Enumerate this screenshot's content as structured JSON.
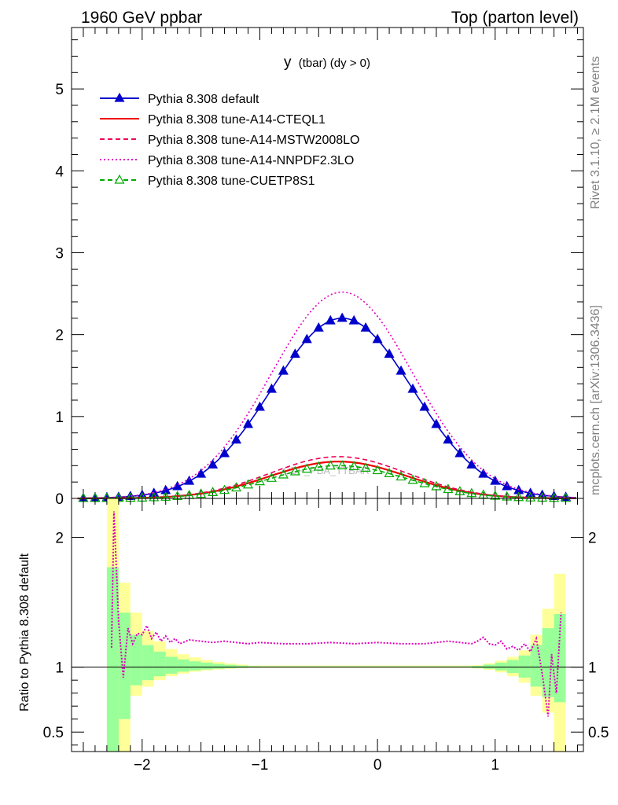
{
  "header": {
    "left": "1960 GeV ppbar",
    "right": "Top (parton level)"
  },
  "side_labels": {
    "rivet": "Rivet 3.1.10, ≥ 2.1M events",
    "mcplots": "mcplots.cern.ch [arXiv:1306.3436]"
  },
  "chart_data": [
    {
      "type": "line",
      "panel": "main",
      "title": "y (tbar) (dy > 0)",
      "title_main": "y",
      "title_sub": "(tbar) (dy > 0)",
      "watermark": "CDF_PBA_TTBAR",
      "xlim": [
        -2.6,
        1.75
      ],
      "ylim": [
        0,
        5.75
      ],
      "yticks": [
        0,
        1,
        2,
        3,
        4,
        5
      ],
      "ytick_labels": [
        "0",
        "1",
        "2",
        "3",
        "4",
        "5"
      ],
      "series": [
        {
          "name": "Pythia 8.308 default",
          "color": "#0000cc",
          "style": "solid",
          "marker": "filled-triangle",
          "mu": -0.3,
          "sigma": 0.6,
          "amp": 2.2
        },
        {
          "name": "Pythia 8.308 tune-A14-CTEQL1",
          "color": "#ee0000",
          "style": "solid",
          "marker": "none",
          "mu": -0.33,
          "sigma": 0.58,
          "amp": 0.45
        },
        {
          "name": "Pythia 8.308 tune-A14-MSTW2008LO",
          "color": "#ee0055",
          "style": "dashed",
          "marker": "none",
          "mu": -0.33,
          "sigma": 0.58,
          "amp": 0.51
        },
        {
          "name": "Pythia 8.308 tune-A14-NNPDF2.3LO",
          "color": "#dd00bb",
          "style": "dotted",
          "marker": "none",
          "mu": -0.3,
          "sigma": 0.6,
          "amp": 2.52
        },
        {
          "name": "Pythia 8.308 tune-CUETP8S1",
          "color": "#00aa00",
          "style": "dashed",
          "marker": "open-triangle",
          "mu": -0.33,
          "sigma": 0.58,
          "amp": 0.4
        }
      ]
    },
    {
      "type": "line",
      "panel": "ratio",
      "ylabel": "Ratio to Pythia 8.308 default",
      "xlim": [
        -2.6,
        1.75
      ],
      "ylim": [
        0.35,
        2.3
      ],
      "yticks": [
        0.5,
        1,
        2
      ],
      "ytick_labels": [
        "0.5",
        "1",
        "2"
      ],
      "xticks": [
        -2,
        -1,
        0,
        1
      ],
      "xtick_labels": [
        "−2",
        "−1",
        "0",
        "1"
      ],
      "reference": 1,
      "band_bins": [
        -2.3,
        -2.2,
        -2.1,
        -2.0,
        -1.9,
        -1.8,
        -1.7,
        -1.6,
        -1.5,
        -1.4,
        -1.3,
        -1.2,
        -1.1,
        -1.0,
        0.8,
        0.9,
        1.0,
        1.1,
        1.2,
        1.3,
        1.4,
        1.5,
        1.6
      ],
      "band_yellow": [
        [
          0.35,
          2.3
        ],
        [
          0.35,
          1.65
        ],
        [
          0.78,
          1.42
        ],
        [
          0.85,
          1.28
        ],
        [
          0.9,
          1.2
        ],
        [
          0.93,
          1.14
        ],
        [
          0.95,
          1.1
        ],
        [
          0.965,
          1.075
        ],
        [
          0.975,
          1.055
        ],
        [
          0.982,
          1.04
        ],
        [
          0.988,
          1.028
        ],
        [
          0.992,
          1.02
        ],
        [
          0.995,
          1.012
        ],
        [
          1.0,
          1.012
        ],
        [
          0.99,
          1.015
        ],
        [
          0.98,
          1.03
        ],
        [
          0.96,
          1.05
        ],
        [
          0.93,
          1.08
        ],
        [
          0.88,
          1.13
        ],
        [
          0.78,
          1.25
        ],
        [
          0.65,
          1.45
        ],
        [
          0.35,
          1.72
        ]
      ],
      "band_green": [
        [
          0.35,
          1.77
        ],
        [
          0.6,
          1.42
        ],
        [
          0.86,
          1.25
        ],
        [
          0.9,
          1.17
        ],
        [
          0.93,
          1.12
        ],
        [
          0.95,
          1.08
        ],
        [
          0.965,
          1.06
        ],
        [
          0.975,
          1.045
        ],
        [
          0.982,
          1.035
        ],
        [
          0.988,
          1.025
        ],
        [
          0.992,
          1.018
        ],
        [
          0.995,
          1.012
        ],
        [
          0.997,
          1.008
        ],
        [
          1.0,
          1.008
        ],
        [
          0.994,
          1.01
        ],
        [
          0.988,
          1.02
        ],
        [
          0.975,
          1.035
        ],
        [
          0.955,
          1.055
        ],
        [
          0.92,
          1.09
        ],
        [
          0.85,
          1.17
        ],
        [
          0.77,
          1.3
        ],
        [
          0.73,
          1.41
        ]
      ],
      "series": [
        {
          "name": "Pythia 8.308 tune-A14-NNPDF2.3LO",
          "color": "#dd00bb",
          "style": "dotted",
          "x": [
            -2.26,
            -2.24,
            -2.2,
            -2.16,
            -2.12,
            -2.08,
            -2.04,
            -2.0,
            -1.96,
            -1.92,
            -1.88,
            -1.84,
            -1.8,
            -1.76,
            -1.72,
            -1.68,
            -1.6,
            -1.5,
            -1.4,
            -1.3,
            -1.2,
            -1.1,
            -1.0,
            -0.8,
            -0.6,
            -0.4,
            -0.2,
            0.0,
            0.2,
            0.4,
            0.6,
            0.7,
            0.8,
            0.85,
            0.9,
            0.95,
            1.0,
            1.05,
            1.1,
            1.15,
            1.2,
            1.25,
            1.3,
            1.35,
            1.4,
            1.45,
            1.48,
            1.52,
            1.56
          ],
          "y": [
            1.15,
            2.2,
            1.35,
            0.92,
            1.3,
            1.18,
            1.26,
            1.25,
            1.32,
            1.22,
            1.27,
            1.2,
            1.24,
            1.19,
            1.22,
            1.18,
            1.21,
            1.2,
            1.19,
            1.2,
            1.19,
            1.18,
            1.19,
            1.18,
            1.18,
            1.19,
            1.18,
            1.19,
            1.18,
            1.18,
            1.2,
            1.19,
            1.18,
            1.2,
            1.23,
            1.18,
            1.17,
            1.2,
            1.14,
            1.16,
            1.13,
            1.18,
            1.12,
            1.22,
            0.95,
            0.62,
            1.1,
            0.8,
            1.42
          ]
        }
      ]
    }
  ]
}
